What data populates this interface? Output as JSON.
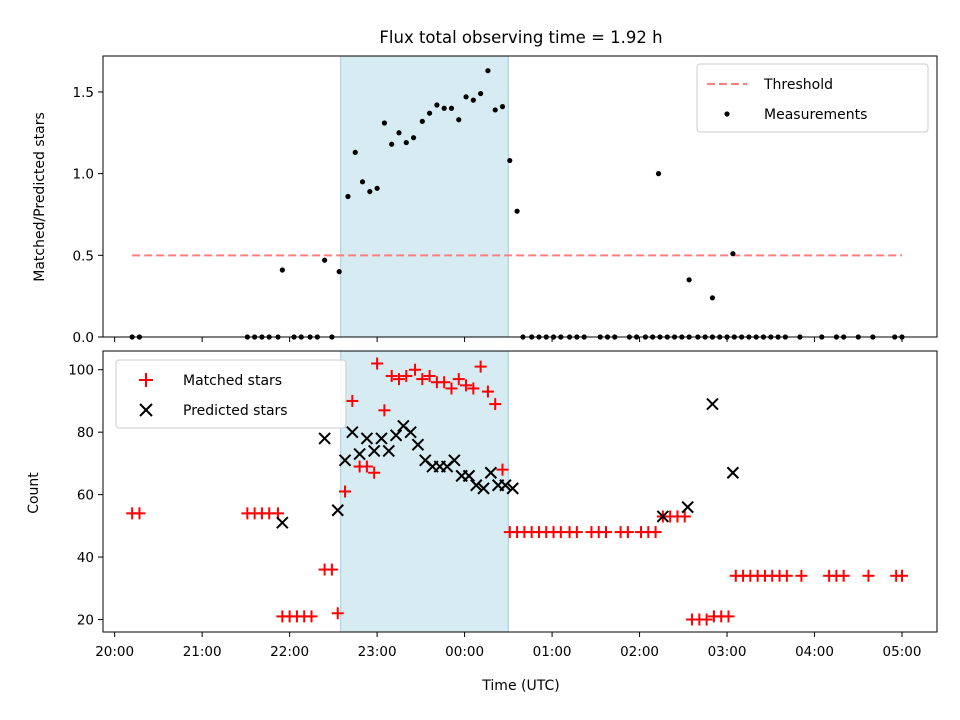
{
  "chart_data": [
    {
      "type": "scatter",
      "title": "Flux total observing time = 1.92 h",
      "ylabel": "Matched/Predicted stars",
      "xlabel": "",
      "xlim": [
        "19:52",
        "05:24"
      ],
      "ylim": [
        0,
        1.72
      ],
      "yticks": [
        0.0,
        0.5,
        1.0,
        1.5
      ],
      "ytick_labels": [
        "0.0",
        "0.5",
        "1.0",
        "1.5"
      ],
      "shaded_region": [
        "22:35",
        "00:30"
      ],
      "shaded_color": "#add8e6",
      "legend_position": "upper right",
      "legend": [
        "Threshold",
        "Measurements"
      ],
      "series": [
        {
          "name": "Threshold",
          "kind": "dashed-line",
          "color": "#ff7f7f",
          "points": [
            [
              "20:12",
              0.5
            ],
            [
              "05:00",
              0.5
            ]
          ]
        },
        {
          "name": "Measurements",
          "kind": "dot",
          "color": "#000000",
          "points": [
            [
              "20:12",
              0
            ],
            [
              "20:17",
              0
            ],
            [
              "21:31",
              0
            ],
            [
              "21:36",
              0
            ],
            [
              "21:41",
              0
            ],
            [
              "21:46",
              0
            ],
            [
              "21:52",
              0
            ],
            [
              "21:55",
              0.41
            ],
            [
              "22:03",
              0
            ],
            [
              "22:08",
              0
            ],
            [
              "22:14",
              0
            ],
            [
              "22:19",
              0
            ],
            [
              "22:24",
              0.47
            ],
            [
              "22:29",
              0
            ],
            [
              "22:34",
              0.4
            ],
            [
              "22:40",
              0.86
            ],
            [
              "22:45",
              1.13
            ],
            [
              "22:50",
              0.95
            ],
            [
              "22:55",
              0.89
            ],
            [
              "23:00",
              0.91
            ],
            [
              "23:05",
              1.31
            ],
            [
              "23:10",
              1.18
            ],
            [
              "23:15",
              1.25
            ],
            [
              "23:20",
              1.19
            ],
            [
              "23:25",
              1.22
            ],
            [
              "23:31",
              1.32
            ],
            [
              "23:36",
              1.37
            ],
            [
              "23:41",
              1.42
            ],
            [
              "23:46",
              1.4
            ],
            [
              "23:51",
              1.4
            ],
            [
              "23:56",
              1.33
            ],
            [
              "00:01",
              1.47
            ],
            [
              "00:06",
              1.45
            ],
            [
              "00:11",
              1.49
            ],
            [
              "00:16",
              1.63
            ],
            [
              "00:21",
              1.39
            ],
            [
              "00:26",
              1.41
            ],
            [
              "00:31",
              1.08
            ],
            [
              "00:36",
              0.77
            ],
            [
              "00:40",
              0
            ],
            [
              "00:46",
              0
            ],
            [
              "00:51",
              0
            ],
            [
              "00:56",
              0
            ],
            [
              "01:01",
              0
            ],
            [
              "01:06",
              0
            ],
            [
              "01:12",
              0
            ],
            [
              "01:17",
              0
            ],
            [
              "01:22",
              0
            ],
            [
              "01:33",
              0
            ],
            [
              "01:38",
              0
            ],
            [
              "01:43",
              0
            ],
            [
              "01:53",
              0
            ],
            [
              "01:58",
              0
            ],
            [
              "02:04",
              0
            ],
            [
              "02:09",
              0
            ],
            [
              "02:14",
              0
            ],
            [
              "02:19",
              0
            ],
            [
              "02:24",
              0
            ],
            [
              "02:29",
              0
            ],
            [
              "02:34",
              0
            ],
            [
              "02:40",
              0
            ],
            [
              "02:45",
              0
            ],
            [
              "02:50",
              0
            ],
            [
              "02:55",
              0
            ],
            [
              "03:00",
              0
            ],
            [
              "03:05",
              0
            ],
            [
              "03:10",
              0
            ],
            [
              "03:15",
              0
            ],
            [
              "03:20",
              0
            ],
            [
              "03:25",
              0
            ],
            [
              "03:30",
              0
            ],
            [
              "03:35",
              0
            ],
            [
              "03:40",
              0
            ],
            [
              "03:50",
              0
            ],
            [
              "04:05",
              0
            ],
            [
              "04:15",
              0
            ],
            [
              "04:20",
              0
            ],
            [
              "04:30",
              0
            ],
            [
              "04:40",
              0
            ],
            [
              "04:55",
              0
            ],
            [
              "05:00",
              0
            ],
            [
              "02:13",
              1.0
            ],
            [
              "02:34",
              0.35
            ],
            [
              "02:50",
              0.24
            ],
            [
              "03:04",
              0.51
            ]
          ]
        }
      ]
    },
    {
      "type": "scatter",
      "title": "",
      "xlabel": "Time (UTC)",
      "ylabel": "Count",
      "xlim": [
        "19:52",
        "05:24"
      ],
      "ylim": [
        16,
        106
      ],
      "yticks": [
        20,
        40,
        60,
        80,
        100
      ],
      "ytick_labels": [
        "20",
        "40",
        "60",
        "80",
        "100"
      ],
      "xticks": [
        "20:00",
        "21:00",
        "22:00",
        "23:00",
        "00:00",
        "01:00",
        "02:00",
        "03:00",
        "04:00",
        "05:00"
      ],
      "shaded_region": [
        "22:35",
        "00:30"
      ],
      "shaded_color": "#add8e6",
      "legend_position": "upper left",
      "legend": [
        "Matched stars",
        "Predicted stars"
      ],
      "series": [
        {
          "name": "Matched stars",
          "marker": "plus",
          "color": "#ff0000",
          "points": [
            [
              "20:12",
              54
            ],
            [
              "20:17",
              54
            ],
            [
              "21:31",
              54
            ],
            [
              "21:36",
              54
            ],
            [
              "21:41",
              54
            ],
            [
              "21:46",
              54
            ],
            [
              "21:52",
              54
            ],
            [
              "21:55",
              21
            ],
            [
              "22:00",
              21
            ],
            [
              "22:05",
              21
            ],
            [
              "22:10",
              21
            ],
            [
              "22:15",
              21
            ],
            [
              "22:24",
              36
            ],
            [
              "22:29",
              36
            ],
            [
              "22:33",
              22
            ],
            [
              "22:38",
              61
            ],
            [
              "22:43",
              90
            ],
            [
              "22:48",
              69
            ],
            [
              "22:53",
              69
            ],
            [
              "22:58",
              67
            ],
            [
              "23:00",
              102
            ],
            [
              "23:05",
              87
            ],
            [
              "23:10",
              98
            ],
            [
              "23:15",
              97
            ],
            [
              "23:20",
              98
            ],
            [
              "23:26",
              100
            ],
            [
              "23:31",
              97
            ],
            [
              "23:36",
              98
            ],
            [
              "23:41",
              96
            ],
            [
              "23:46",
              96
            ],
            [
              "23:51",
              94
            ],
            [
              "23:56",
              97
            ],
            [
              "00:01",
              95
            ],
            [
              "00:06",
              94
            ],
            [
              "00:11",
              101
            ],
            [
              "00:16",
              93
            ],
            [
              "00:21",
              89
            ],
            [
              "00:26",
              68
            ],
            [
              "00:31",
              48
            ],
            [
              "00:36",
              48
            ],
            [
              "00:41",
              48
            ],
            [
              "00:46",
              48
            ],
            [
              "00:51",
              48
            ],
            [
              "00:56",
              48
            ],
            [
              "01:01",
              48
            ],
            [
              "01:06",
              48
            ],
            [
              "01:12",
              48
            ],
            [
              "01:17",
              48
            ],
            [
              "01:27",
              48
            ],
            [
              "01:32",
              48
            ],
            [
              "01:37",
              48
            ],
            [
              "01:47",
              48
            ],
            [
              "01:52",
              48
            ],
            [
              "02:01",
              48
            ],
            [
              "02:06",
              48
            ],
            [
              "02:11",
              48
            ],
            [
              "02:16",
              53
            ],
            [
              "02:21",
              53
            ],
            [
              "02:26",
              53
            ],
            [
              "02:31",
              53
            ],
            [
              "02:36",
              20
            ],
            [
              "02:41",
              20
            ],
            [
              "02:46",
              20
            ],
            [
              "02:51",
              21
            ],
            [
              "02:56",
              21
            ],
            [
              "03:01",
              21
            ],
            [
              "03:06",
              34
            ],
            [
              "03:11",
              34
            ],
            [
              "03:16",
              34
            ],
            [
              "03:21",
              34
            ],
            [
              "03:26",
              34
            ],
            [
              "03:31",
              34
            ],
            [
              "03:36",
              34
            ],
            [
              "03:41",
              34
            ],
            [
              "03:51",
              34
            ],
            [
              "04:10",
              34
            ],
            [
              "04:15",
              34
            ],
            [
              "04:20",
              34
            ],
            [
              "04:37",
              34
            ],
            [
              "04:56",
              34
            ],
            [
              "05:00",
              34
            ]
          ]
        },
        {
          "name": "Predicted stars",
          "marker": "cross",
          "color": "#000000",
          "points": [
            [
              "21:55",
              51
            ],
            [
              "22:24",
              78
            ],
            [
              "22:33",
              55
            ],
            [
              "22:38",
              71
            ],
            [
              "22:43",
              80
            ],
            [
              "22:48",
              73
            ],
            [
              "22:53",
              78
            ],
            [
              "22:58",
              74
            ],
            [
              "23:03",
              78
            ],
            [
              "23:08",
              74
            ],
            [
              "23:13",
              79
            ],
            [
              "23:18",
              82
            ],
            [
              "23:23",
              80
            ],
            [
              "23:28",
              76
            ],
            [
              "23:33",
              71
            ],
            [
              "23:38",
              69
            ],
            [
              "23:43",
              69
            ],
            [
              "23:48",
              69
            ],
            [
              "23:53",
              71
            ],
            [
              "23:58",
              66
            ],
            [
              "00:03",
              66
            ],
            [
              "00:08",
              63
            ],
            [
              "00:13",
              62
            ],
            [
              "00:18",
              67
            ],
            [
              "00:23",
              63
            ],
            [
              "00:28",
              63
            ],
            [
              "00:33",
              62
            ],
            [
              "02:16",
              53
            ],
            [
              "02:33",
              56
            ],
            [
              "02:50",
              89
            ],
            [
              "03:04",
              67
            ]
          ]
        }
      ]
    }
  ]
}
